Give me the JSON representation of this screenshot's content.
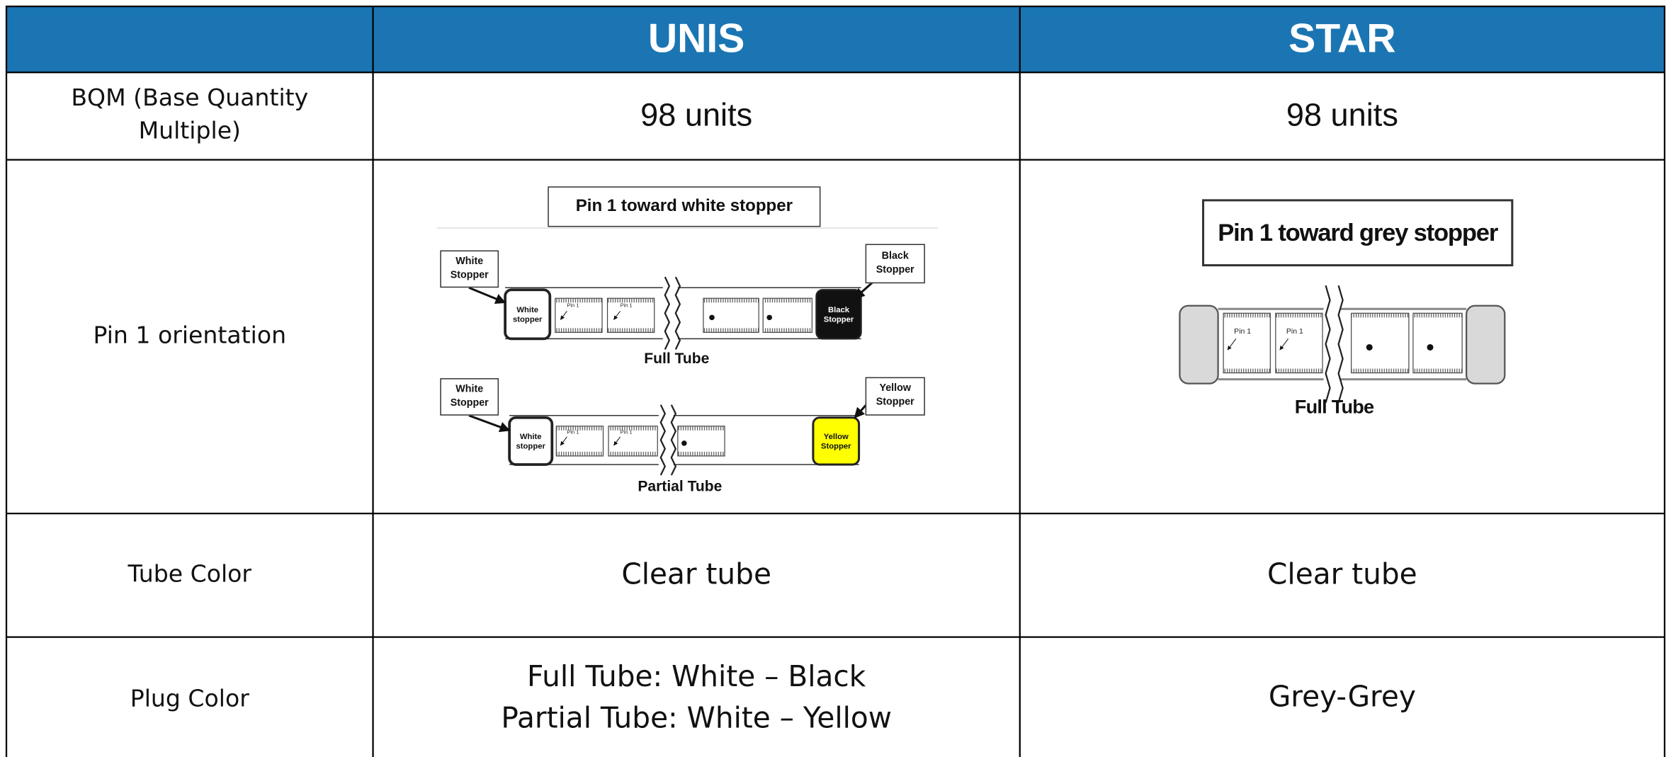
{
  "table": {
    "columns": [
      "UNIS",
      "STAR"
    ],
    "rows": [
      {
        "label": "BQM (Base Quantity Multiple)",
        "cells": [
          "98 units",
          "98 units"
        ]
      },
      {
        "label": "Pin 1 orientation"
      },
      {
        "label": "Tube Color",
        "cells": [
          "Clear tube",
          "Clear tube"
        ]
      },
      {
        "label": "Plug Color",
        "cells": [
          [
            "Full Tube: White – Black",
            "Partial Tube: White – Yellow"
          ],
          "Grey-Grey"
        ]
      }
    ]
  },
  "unis_diagram": {
    "title": "Pin 1 toward white stopper",
    "full_tube": {
      "left_callout": "White Stopper",
      "right_callout": "Black Stopper",
      "left_plug": "White stopper",
      "right_plug": "Black Stopper",
      "pin_label": "Pin 1",
      "caption": "Full Tube"
    },
    "partial_tube": {
      "left_callout": "White Stopper",
      "right_callout": "Yellow Stopper",
      "left_plug": "White stopper",
      "right_plug": "Yellow Stopper",
      "pin_label": "Pin 1",
      "caption": "Partial Tube"
    }
  },
  "star_diagram": {
    "title": "Pin 1 toward grey stopper",
    "pin_label": "Pin 1",
    "caption": "Full Tube"
  }
}
